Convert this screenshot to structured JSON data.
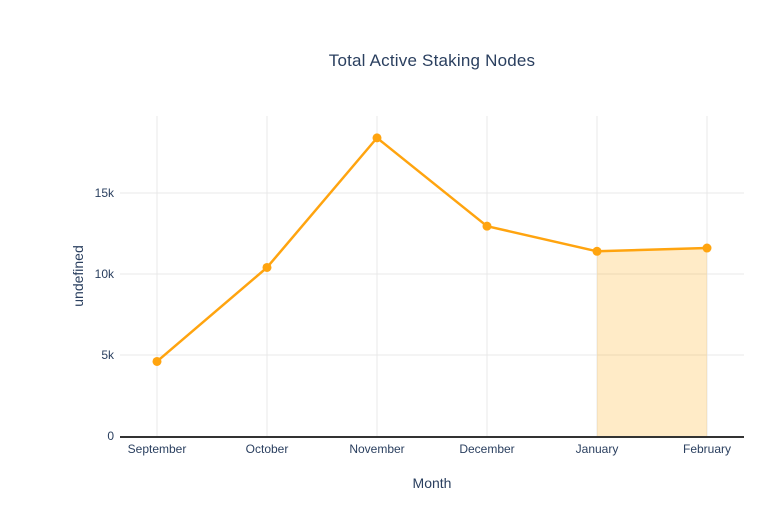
{
  "chart_data": {
    "type": "line",
    "title": "Total Active Staking Nodes",
    "xlabel": "Month",
    "ylabel": "undefined",
    "categories": [
      "September",
      "October",
      "November",
      "December",
      "January",
      "February"
    ],
    "series": [
      {
        "name": "Total Active Staking Nodes",
        "values": [
          4600,
          10400,
          18400,
          12950,
          11400,
          11600
        ]
      }
    ],
    "ylim": [
      0,
      19750
    ],
    "yticks": {
      "values": [
        0,
        5000,
        10000,
        15000
      ],
      "labels": [
        "0",
        "5k",
        "10k",
        "15k"
      ]
    },
    "grid": true,
    "legend": "none",
    "highlight_region": {
      "from": "January",
      "to": "February",
      "fill": "rgba(255, 165, 0, 0.22)",
      "description": "area under line filled to zero between January and February"
    },
    "colors": {
      "line": "#FFA40F",
      "marker": "#FFA40F",
      "area_fill": "rgba(255, 165, 0, 0.22)",
      "grid": "#E8E8E8",
      "axis_line": "#333333",
      "text": "#2A3F5F"
    }
  }
}
